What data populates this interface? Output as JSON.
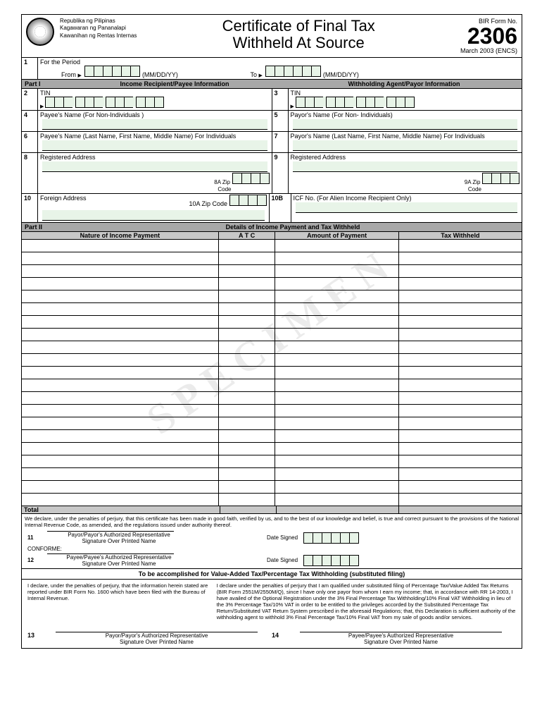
{
  "gov": {
    "l1": "Republika ng Pilipinas",
    "l2": "Kagawaran ng Pananalapi",
    "l3": "Kawanihan ng Rentas Internas"
  },
  "title1": "Certificate of Final Tax",
  "title2": "Withheld At Source",
  "formNo": "BIR Form No.",
  "formNum": "2306",
  "formDate": "March 2003 (ENCS)",
  "period": {
    "num": "1",
    "label": "For the Period",
    "from": "From",
    "to": "To",
    "fmt": "(MM/DD/YY)"
  },
  "partI": {
    "label": "Part I",
    "left": "Income Recipient/Payee Information",
    "right": "Withholding Agent/Payor Information"
  },
  "f2": {
    "n": "2",
    "l": "TIN"
  },
  "f3": {
    "n": "3",
    "l": "TIN"
  },
  "f4": {
    "n": "4",
    "l": "Payee's Name (For Non-Individuals )"
  },
  "f5": {
    "n": "5",
    "l": "Payor's Name (For Non- Individuals)"
  },
  "f6": {
    "n": "6",
    "l": "Payee's Name  (Last Name, First Name,  Middle Name) For Individuals"
  },
  "f7": {
    "n": "7",
    "l": "Payor's Name  (Last Name, First Name,  Middle Name) For Individuals"
  },
  "f8": {
    "n": "8",
    "l": "Registered Address",
    "zip": "8A  Zip",
    "code": "Code"
  },
  "f9": {
    "n": "9",
    "l": "Registered Address",
    "zip": "9A Zip",
    "code": "Code"
  },
  "f10": {
    "n": "10",
    "l": "Foreign Address",
    "zip": "10A   Zip  Code"
  },
  "f10b": {
    "n": "10B",
    "l": "ICF No.  (For Alien Income Recipient Only)"
  },
  "partII": {
    "label": "Part II",
    "title": "Details of Income Payment and Tax Withheld"
  },
  "cols": {
    "c1": "Nature of Income Payment",
    "c2": "A T C",
    "c3": "Amount of Payment",
    "c4": "Tax Withheld"
  },
  "total": "Total",
  "decl1": "We declare, under the penalties of perjury, that this certificate has been made in good faith, verified by us, and to the best of our knowledge and belief, is true and correct pursuant to the provisions of the National Internal Revenue Code, as amended, and the regulations issued under authority thereof.",
  "s11": "11",
  "s12": "12",
  "conforme": "CONFORME:",
  "dateSigned": "Date Signed",
  "payor": "Payor/Payor's Authorized Representative",
  "payee": "Payee/Payee's Authorized Representative",
  "sigOver": "Signature Over Printed Name",
  "subHdr": "To be accomplished for Value-Added Tax/Percentage Tax Withholding (substituted filing)",
  "declL": "I declare, under the penalties of perjury,  that the information herein stated are reported under BIR Form No. 1600  which have been filed with the Bureau of Internal Revenue.",
  "declR": "I declare under the penalties of perjury that I am qualified under substituted filing of Percentage Tax/Value Added Tax Returns (BIR Form 2551M/2550M/Q), since I have only one payor from whom I earn my income; that, in accordance with RR 14-2003, I have availed of the Optional Registration under the 3% Final Percentage Tax Withholding/10% Final VAT Withholding in lieu of the 3% Percentage Tax/10% VAT in order to be entitled to the privileges accorded  by the Substituted Percentage Tax Return/Substituted VAT Return System prescribed in the aforesaid Regulations; that, this Declaration is sufficient authority of the withholding agent to withhold 3% Final Percentage Tax/10% Final VAT from my sale of goods and/or services.",
  "s13": "13",
  "s14": "14",
  "watermark": "SPECIMEN",
  "rowCount": 21
}
